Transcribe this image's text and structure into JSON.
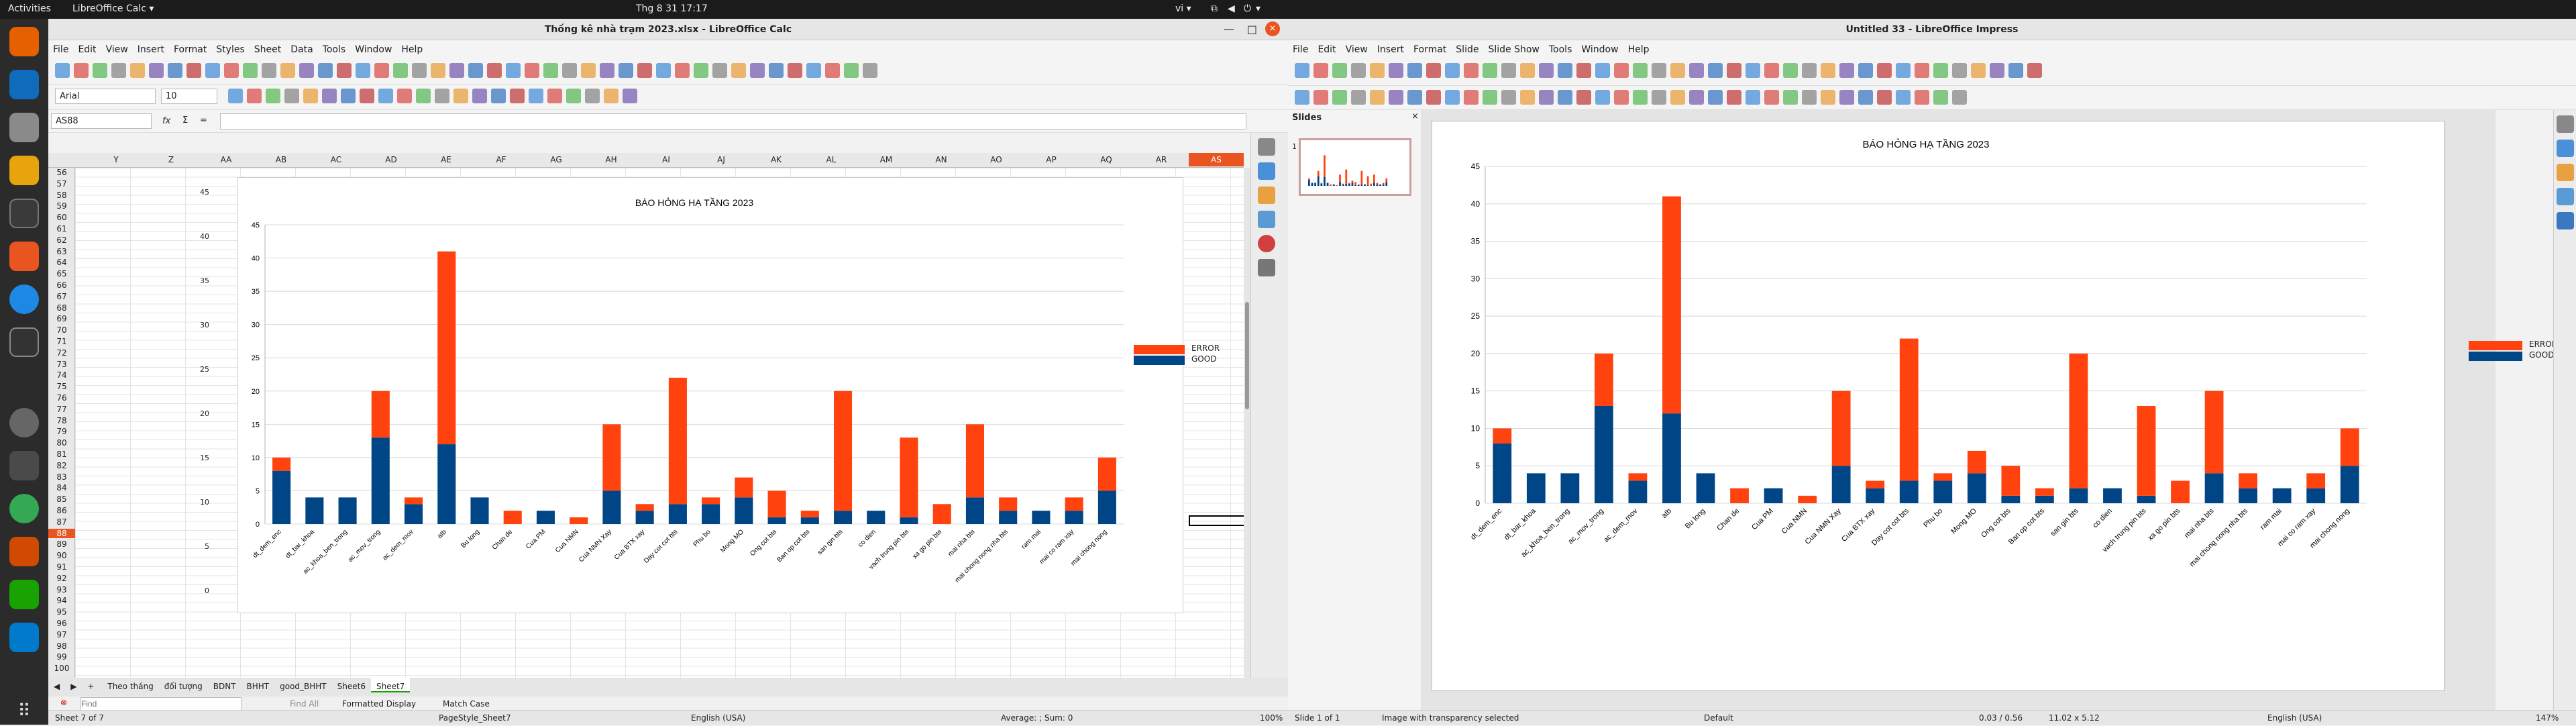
{
  "system": {
    "activities": "Activities",
    "app_menu": "LibreOffice Calc ▾",
    "clock": "Thg 8 31  17:17",
    "lang": "vi ▾"
  },
  "calc": {
    "title": "Thống kê nhà trạm 2023.xlsx - LibreOffice Calc",
    "menu": [
      "File",
      "Edit",
      "View",
      "Insert",
      "Format",
      "Styles",
      "Sheet",
      "Data",
      "Tools",
      "Window",
      "Help"
    ],
    "font_name": "Arial",
    "font_size": "10",
    "name_box": "AS88",
    "fx": "fx",
    "columns": [
      "Y",
      "Z",
      "AA",
      "AB",
      "AC",
      "AD",
      "AE",
      "AF",
      "AG",
      "AH",
      "AI",
      "AJ",
      "AK",
      "AL",
      "AM",
      "AN",
      "AO",
      "AP",
      "AQ",
      "AR",
      "AS"
    ],
    "rows": [
      "56",
      "57",
      "58",
      "59",
      "60",
      "61",
      "62",
      "63",
      "64",
      "65",
      "66",
      "67",
      "68",
      "69",
      "70",
      "71",
      "72",
      "73",
      "74",
      "75",
      "76",
      "77",
      "78",
      "79",
      "80",
      "81",
      "82",
      "83",
      "84",
      "85",
      "86",
      "87",
      "88",
      "89",
      "90",
      "91",
      "92",
      "93",
      "94",
      "95",
      "96",
      "97",
      "98",
      "99",
      "100"
    ],
    "bg_axis": [
      "45",
      "40",
      "35",
      "30",
      "25",
      "20",
      "15",
      "10",
      "5",
      "0"
    ],
    "bg_label": "dt_dem_..",
    "sheet_tabs": [
      "Theo tháng",
      "đối tượng",
      "BDNT",
      "BHHT",
      "good_BHHT",
      "Sheet6",
      "Sheet7"
    ],
    "find": {
      "placeholder": "Find",
      "find_all": "Find All",
      "formatted": "Formatted Display",
      "match_case": "Match Case"
    },
    "status": {
      "sheet": "Sheet 7 of 7",
      "style": "PageStyle_Sheet7",
      "lang": "English (USA)",
      "stats": "Average: ; Sum: 0",
      "zoom": "100%"
    }
  },
  "impress": {
    "title": "Untitled 33 - LibreOffice Impress",
    "menu": [
      "File",
      "Edit",
      "View",
      "Insert",
      "Format",
      "Slide",
      "Slide Show",
      "Tools",
      "Window",
      "Help"
    ],
    "slides_title": "Slides",
    "slide_num": "1",
    "status": {
      "slide": "Slide 1 of 1",
      "sel": "Image with transparency selected",
      "layout": "Default",
      "pos": "0.03 / 0.56",
      "size": "11.02 x 5.12",
      "lang": "English (USA)",
      "zoom": "147%"
    }
  },
  "chart_data": {
    "type": "bar",
    "title": "BÁO HỎNG HẠ TẦNG 2023",
    "categories": [
      "dt_dem_enc",
      "dt_bar_khoa",
      "ac_khoa_ben_trong",
      "ac_mov_trong",
      "ac_dem_mov",
      "atb",
      "Bu long",
      "Chan de",
      "Cua PM",
      "Cua NMN",
      "Cua NMN Xay",
      "Cua BTX xay",
      "Day cot cot bts",
      "Phu bo",
      "Mong MO",
      "Ong cot bts",
      "Ban op cot bts",
      "san gin bts",
      "co dien",
      "vach trung pin bts",
      "xa go pin bts",
      "mai nha bts",
      "mai chong nong nha bts",
      "ram mai",
      "mai co ram xay",
      "mai chong nong"
    ],
    "series": [
      {
        "name": "GOOD",
        "color": "#004586",
        "values": [
          8,
          4,
          4,
          13,
          3,
          12,
          4,
          0,
          2,
          0,
          5,
          2,
          3,
          3,
          4,
          1,
          1,
          2,
          2,
          1,
          0,
          4,
          2,
          2,
          2,
          5
        ]
      },
      {
        "name": "ERROR",
        "color": "#ff420e",
        "values": [
          2,
          0,
          0,
          7,
          1,
          29,
          0,
          2,
          0,
          1,
          10,
          1,
          19,
          1,
          3,
          4,
          1,
          18,
          0,
          12,
          3,
          11,
          2,
          0,
          2,
          5
        ]
      }
    ],
    "ylim": [
      0,
      45
    ],
    "yticks": [
      "0",
      "5",
      "10",
      "15",
      "20",
      "25",
      "30",
      "35",
      "40",
      "45"
    ],
    "legend_position": "right"
  }
}
